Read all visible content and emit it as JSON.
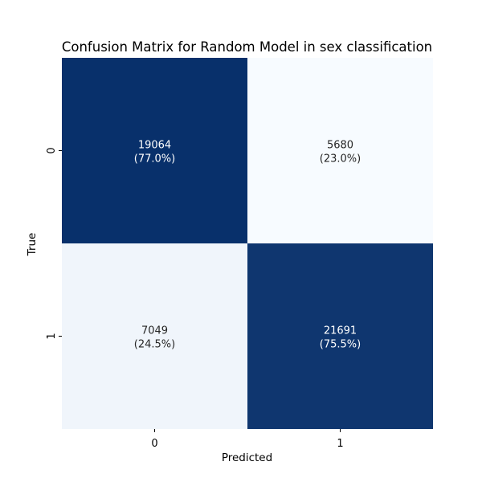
{
  "chart_data": {
    "type": "heatmap",
    "title": "Confusion Matrix for Random Model in sex classification",
    "xlabel": "Predicted",
    "ylabel": "True",
    "x_categories": [
      "0",
      "1"
    ],
    "y_categories": [
      "0",
      "1"
    ],
    "values": [
      [
        19064,
        5680
      ],
      [
        7049,
        21691
      ]
    ],
    "percentages": [
      [
        "(77.0%)",
        "(23.0%)"
      ],
      [
        "(24.5%)",
        "(75.5%)"
      ]
    ],
    "colormap": "Blues",
    "colorbar": false,
    "colors": {
      "high": "#08306b",
      "low": "#f7fbff",
      "text_on_dark": "#ffffff",
      "text_on_light": "#262626"
    }
  }
}
